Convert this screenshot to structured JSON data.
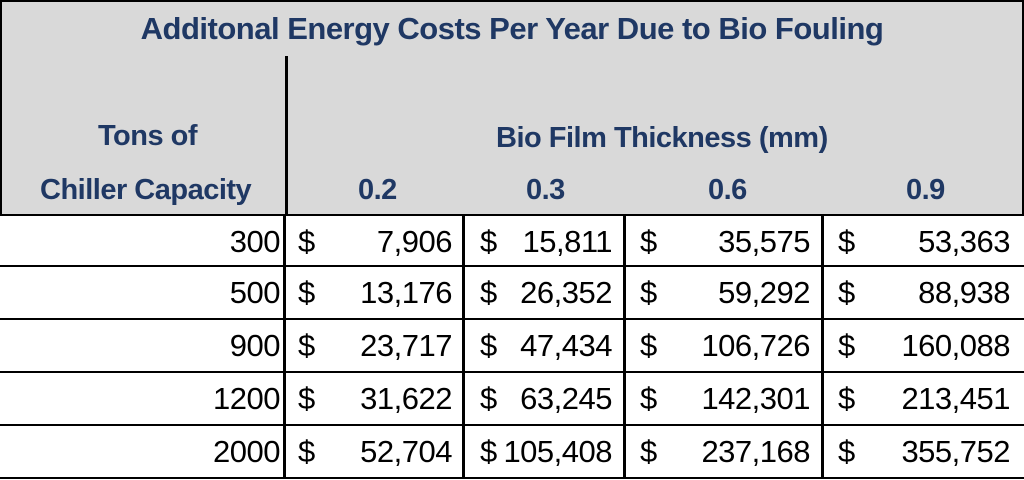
{
  "title": "Additonal Energy Costs Per Year Due to Bio Fouling",
  "header": {
    "capacity_line1": "Tons of",
    "capacity_line2": "Chiller Capacity",
    "thickness_label": "Bio Film Thickness (mm)",
    "thickness_values": [
      "0.2",
      "0.3",
      "0.6",
      "0.9"
    ]
  },
  "currency_symbol": "$",
  "rows": [
    {
      "capacity": "300",
      "values": [
        "7,906",
        "15,811",
        "35,575",
        "53,363"
      ]
    },
    {
      "capacity": "500",
      "values": [
        "13,176",
        "26,352",
        "59,292",
        "88,938"
      ]
    },
    {
      "capacity": "900",
      "values": [
        "23,717",
        "47,434",
        "106,726",
        "160,088"
      ]
    },
    {
      "capacity": "1200",
      "values": [
        "31,622",
        "63,245",
        "142,301",
        "213,451"
      ]
    },
    {
      "capacity": "2000",
      "values": [
        "52,704",
        "105,408",
        "237,168",
        "355,752"
      ]
    }
  ]
}
